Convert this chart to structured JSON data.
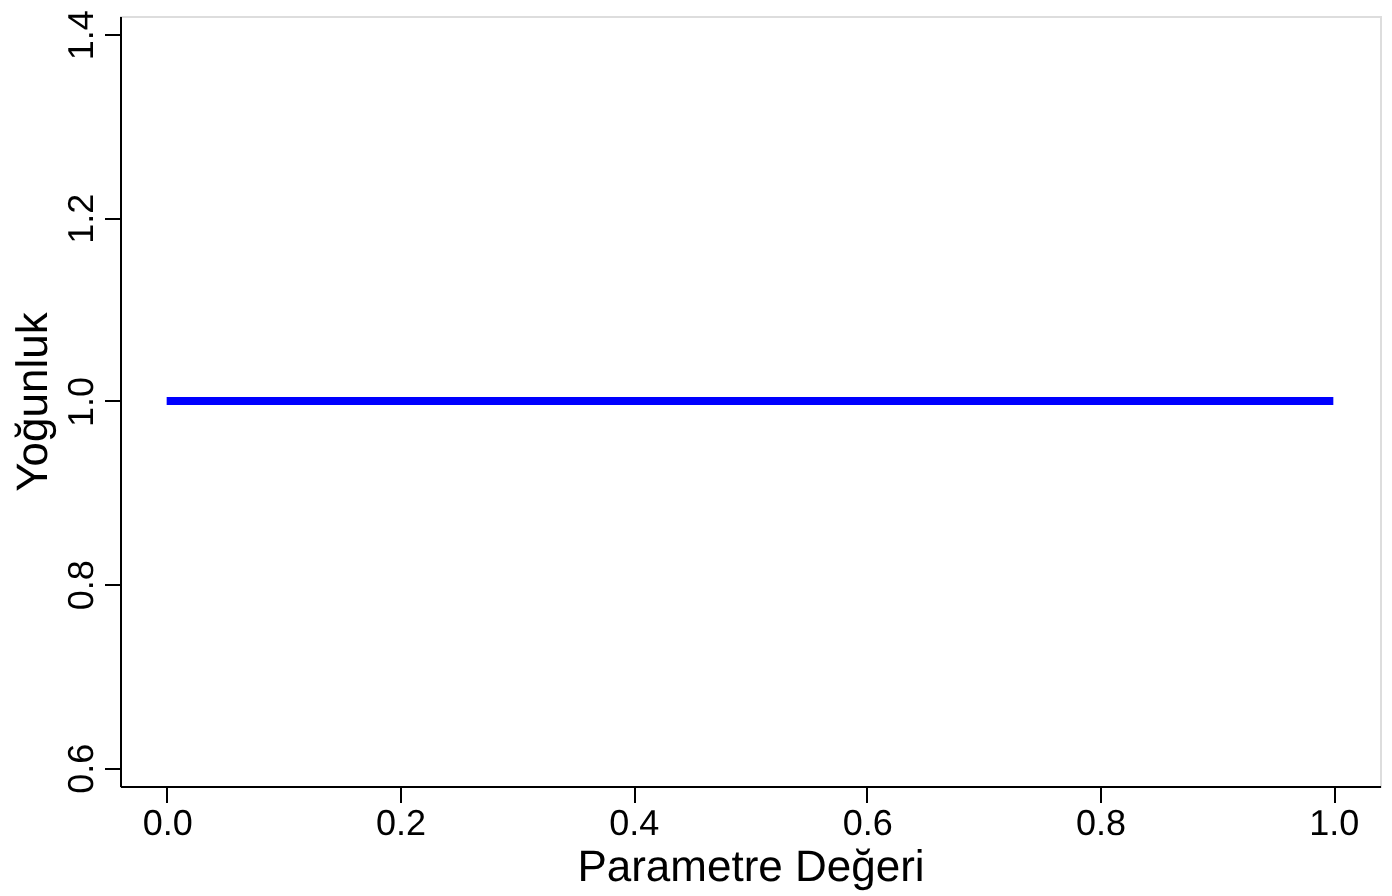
{
  "chart_data": {
    "type": "line",
    "xlabel": "Parametre Değeri",
    "ylabel": "Yoğunluk",
    "x": [
      0.0,
      1.0
    ],
    "series": [
      {
        "color": "#0000ff",
        "values": [
          1.0,
          1.0
        ]
      }
    ],
    "xlim": [
      -0.04,
      1.04
    ],
    "xticks": [
      {
        "value": 0,
        "label": "0.0"
      },
      {
        "value": 0.2,
        "label": "0.2"
      },
      {
        "value": 0.4,
        "label": "0.4"
      },
      {
        "value": 0.6,
        "label": "0.6"
      },
      {
        "value": 0.8,
        "label": "0.8"
      },
      {
        "value": 1,
        "label": "1.0"
      }
    ],
    "ylim": [
      0.58,
      1.42
    ],
    "yticks": [
      {
        "value": 0.6,
        "label": "0.6"
      },
      {
        "value": 0.8,
        "label": "0.8"
      },
      {
        "value": 1,
        "label": "1.0"
      },
      {
        "value": 1.2,
        "label": "1.2"
      },
      {
        "value": 1.4,
        "label": "1.4"
      }
    ],
    "grid": false,
    "marker": "none",
    "line_style": "solid"
  }
}
